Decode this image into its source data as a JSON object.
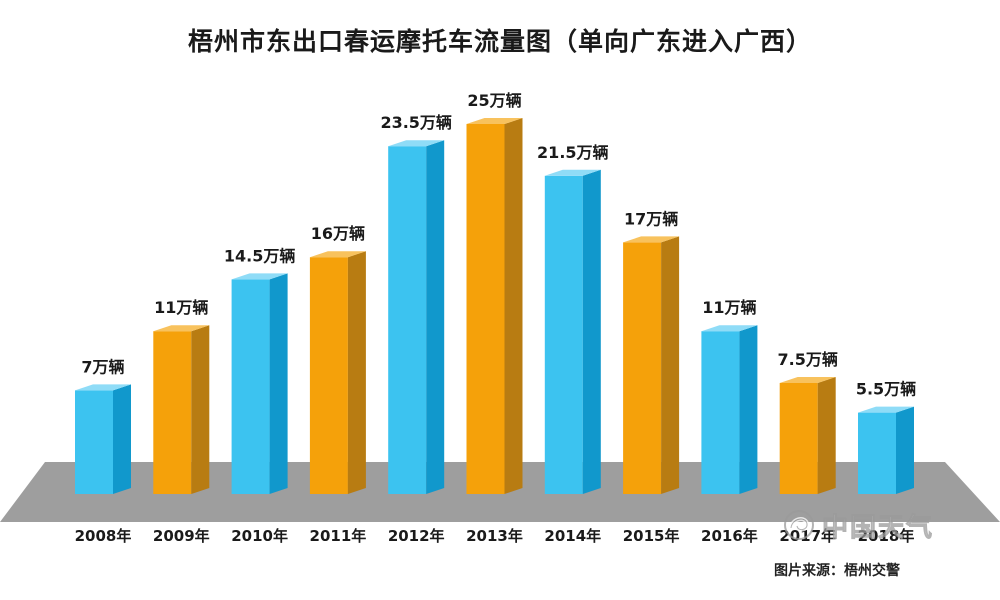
{
  "chart_data": {
    "type": "bar",
    "title": "梧州市东出口春运摩托车流量图（单向广东进入广西）",
    "categories": [
      "2008年",
      "2009年",
      "2010年",
      "2011年",
      "2012年",
      "2013年",
      "2014年",
      "2015年",
      "2016年",
      "2017年",
      "2018年"
    ],
    "values": [
      7,
      11,
      14.5,
      16,
      23.5,
      25,
      21.5,
      17,
      11,
      7.5,
      5.5
    ],
    "data_labels": [
      "7万辆",
      "11万辆",
      "14.5万辆",
      "16万辆",
      "23.5万辆",
      "25万辆",
      "21.5万辆",
      "17万辆",
      "11万辆",
      "7.5万辆",
      "5.5万辆"
    ],
    "unit": "万辆",
    "xlabel": "",
    "ylabel": "",
    "grid": false,
    "legend": "none",
    "bar_style": "3d",
    "colors": [
      "#3cc3f0",
      "#f5a10a",
      "#3cc3f0",
      "#f5a10a",
      "#3cc3f0",
      "#f5a10a",
      "#3cc3f0",
      "#f5a10a",
      "#3cc3f0",
      "#f5a10a",
      "#3cc3f0"
    ]
  },
  "palette": {
    "blue_front": "#3cc3f0",
    "blue_side": "#1198cc",
    "blue_top": "#8fdcf7",
    "orange_front": "#f5a10a",
    "orange_side": "#b87c12",
    "orange_top": "#f8c25d",
    "floor": "#9e9e9e",
    "floor_edge": "#7d7d7d"
  },
  "source": "图片来源：梧州交警",
  "watermark": {
    "text": "中国天气",
    "icon": "swirl-logo-icon"
  }
}
